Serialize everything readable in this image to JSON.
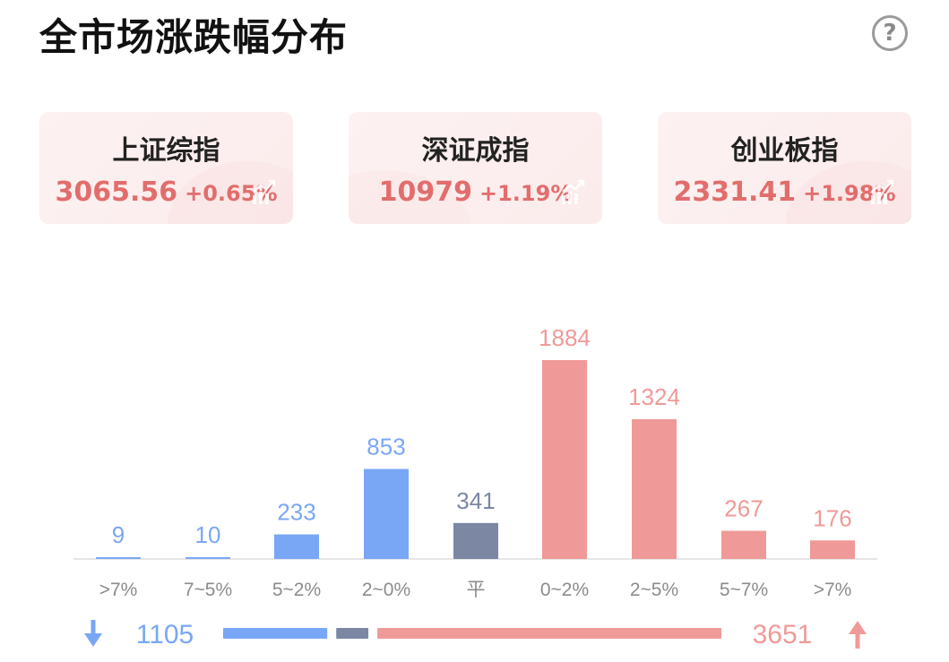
{
  "header": {
    "title": "全市场涨跌幅分布",
    "help_icon": "?"
  },
  "indices": [
    {
      "name": "上证综指",
      "value": "3065.56",
      "change": "+0.65%"
    },
    {
      "name": "深证成指",
      "value": "10979",
      "change": "+1.19%"
    },
    {
      "name": "创业板指",
      "value": "2331.41",
      "change": "+1.98%"
    }
  ],
  "colors": {
    "down": "#7aa7f5",
    "flat": "#7b87a3",
    "up": "#ef9a98",
    "up_text": "#e26d6d"
  },
  "chart_data": {
    "type": "bar",
    "categories": [
      ">7%",
      "7~5%",
      "5~2%",
      "2~0%",
      "平",
      "0~2%",
      "2~5%",
      "5~7%",
      ">7%"
    ],
    "values": [
      9,
      10,
      233,
      853,
      341,
      1884,
      1324,
      267,
      176
    ],
    "groups": [
      "down",
      "down",
      "down",
      "down",
      "flat",
      "up",
      "up",
      "up",
      "up"
    ],
    "ylim": [
      0,
      1884
    ]
  },
  "summary": {
    "down_total": "1105",
    "up_total": "3651",
    "down_count": 1105,
    "flat_count": 341,
    "up_count": 3651
  }
}
